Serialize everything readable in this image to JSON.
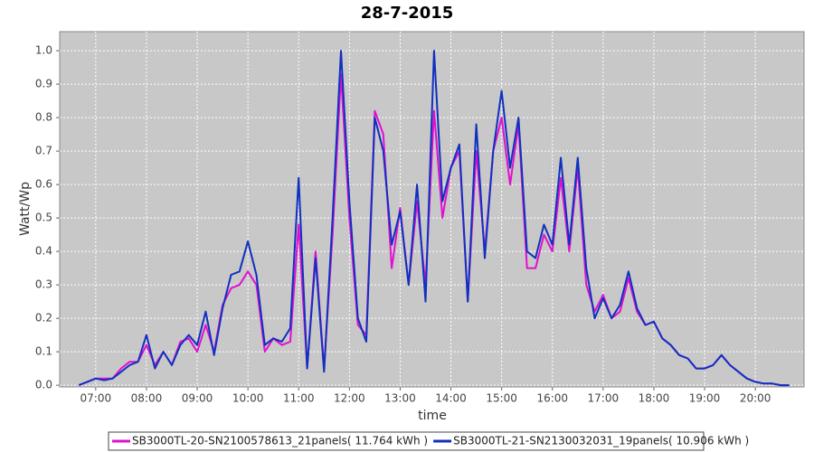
{
  "chart_data": {
    "type": "line",
    "title": "28-7-2015",
    "x_label": "time",
    "y_label": "Watt/Wp",
    "x": [
      6.667,
      6.833,
      7.0,
      7.167,
      7.333,
      7.5,
      7.667,
      7.833,
      8.0,
      8.167,
      8.333,
      8.5,
      8.667,
      8.833,
      9.0,
      9.167,
      9.333,
      9.5,
      9.667,
      9.833,
      10.0,
      10.167,
      10.333,
      10.5,
      10.667,
      10.833,
      11.0,
      11.167,
      11.333,
      11.5,
      11.667,
      11.833,
      12.0,
      12.167,
      12.333,
      12.5,
      12.667,
      12.833,
      13.0,
      13.167,
      13.333,
      13.5,
      13.667,
      13.833,
      14.0,
      14.167,
      14.333,
      14.5,
      14.667,
      14.833,
      15.0,
      15.167,
      15.333,
      15.5,
      15.667,
      15.833,
      16.0,
      16.167,
      16.333,
      16.5,
      16.667,
      16.833,
      17.0,
      17.167,
      17.333,
      17.5,
      17.667,
      17.833,
      18.0,
      18.167,
      18.333,
      18.5,
      18.667,
      18.833,
      19.0,
      19.167,
      19.333,
      19.5,
      19.667,
      19.833,
      20.0,
      20.167,
      20.333,
      20.5,
      20.667
    ],
    "series": [
      {
        "name": "SB3000TL-20-SN2100578613_21panels( 11.764 kWh )",
        "color": "#e010d0",
        "values": [
          0.0,
          0.01,
          0.02,
          0.02,
          0.02,
          0.05,
          0.07,
          0.07,
          0.12,
          0.06,
          0.1,
          0.06,
          0.13,
          0.14,
          0.1,
          0.18,
          0.1,
          0.24,
          0.29,
          0.3,
          0.34,
          0.3,
          0.1,
          0.14,
          0.12,
          0.13,
          0.48,
          0.05,
          0.4,
          0.05,
          0.45,
          0.93,
          0.5,
          0.18,
          0.15,
          0.82,
          0.75,
          0.35,
          0.53,
          0.3,
          0.55,
          0.3,
          0.82,
          0.5,
          0.65,
          0.7,
          0.25,
          0.7,
          0.4,
          0.7,
          0.8,
          0.6,
          0.78,
          0.35,
          0.35,
          0.45,
          0.4,
          0.62,
          0.4,
          0.65,
          0.3,
          0.22,
          0.27,
          0.2,
          0.22,
          0.32,
          0.22,
          0.18,
          0.19,
          0.14,
          0.12,
          0.09,
          0.08,
          0.05,
          0.05,
          0.06,
          0.09,
          0.06,
          0.04,
          0.02,
          0.01,
          0.005,
          0.005,
          0.0,
          0.0
        ]
      },
      {
        "name": "SB3000TL-21-SN2130032031_19panels( 10.906 kWh )",
        "color": "#1030c0",
        "values": [
          0.0,
          0.01,
          0.02,
          0.015,
          0.02,
          0.04,
          0.06,
          0.07,
          0.15,
          0.05,
          0.1,
          0.06,
          0.12,
          0.15,
          0.12,
          0.22,
          0.09,
          0.23,
          0.33,
          0.34,
          0.43,
          0.33,
          0.12,
          0.14,
          0.13,
          0.17,
          0.62,
          0.05,
          0.38,
          0.04,
          0.5,
          1.0,
          0.55,
          0.2,
          0.13,
          0.8,
          0.7,
          0.42,
          0.52,
          0.3,
          0.6,
          0.25,
          1.0,
          0.55,
          0.65,
          0.72,
          0.25,
          0.78,
          0.38,
          0.7,
          0.88,
          0.65,
          0.8,
          0.4,
          0.38,
          0.48,
          0.42,
          0.68,
          0.42,
          0.68,
          0.35,
          0.2,
          0.26,
          0.2,
          0.24,
          0.34,
          0.23,
          0.18,
          0.19,
          0.14,
          0.12,
          0.09,
          0.08,
          0.05,
          0.05,
          0.06,
          0.09,
          0.06,
          0.04,
          0.02,
          0.01,
          0.005,
          0.005,
          0.0,
          0.0
        ]
      }
    ],
    "xlim": [
      6.29,
      20.96
    ],
    "xticks": [
      {
        "value": 7,
        "label": "07:00"
      },
      {
        "value": 8,
        "label": "08:00"
      },
      {
        "value": 9,
        "label": "09:00"
      },
      {
        "value": 10,
        "label": "10:00"
      },
      {
        "value": 11,
        "label": "11:00"
      },
      {
        "value": 12,
        "label": "12:00"
      },
      {
        "value": 13,
        "label": "13:00"
      },
      {
        "value": 14,
        "label": "14:00"
      },
      {
        "value": 15,
        "label": "15:00"
      },
      {
        "value": 16,
        "label": "16:00"
      },
      {
        "value": 17,
        "label": "17:00"
      },
      {
        "value": 18,
        "label": "18:00"
      },
      {
        "value": 19,
        "label": "19:00"
      },
      {
        "value": 20,
        "label": "20:00"
      }
    ],
    "ylim": [
      -0.005,
      1.057
    ],
    "yticks": [
      {
        "value": 0,
        "label": "0.0"
      },
      {
        "value": 0.1,
        "label": "0.1"
      },
      {
        "value": 0.2,
        "label": "0.2"
      },
      {
        "value": 0.3,
        "label": "0.3"
      },
      {
        "value": 0.4,
        "label": "0.4"
      },
      {
        "value": 0.5,
        "label": "0.5"
      },
      {
        "value": 0.6,
        "label": "0.6"
      },
      {
        "value": 0.7,
        "label": "0.7"
      },
      {
        "value": 0.8,
        "label": "0.8"
      },
      {
        "value": 0.9,
        "label": "0.9"
      },
      {
        "value": 1,
        "label": "1.0"
      }
    ],
    "grid": true,
    "legend": "bottom"
  }
}
